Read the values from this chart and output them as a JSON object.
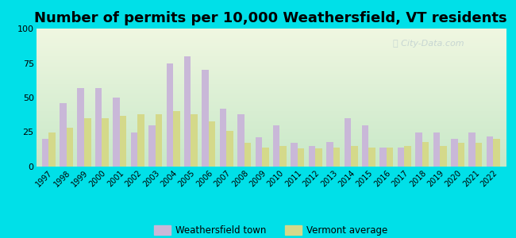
{
  "title": "Number of permits per 10,000 Weathersfield, VT residents",
  "years": [
    1997,
    1998,
    1999,
    2000,
    2001,
    2002,
    2003,
    2004,
    2005,
    2006,
    2007,
    2008,
    2009,
    2010,
    2011,
    2012,
    2013,
    2014,
    2015,
    2016,
    2017,
    2018,
    2019,
    2020,
    2021,
    2022
  ],
  "weathersfield": [
    20,
    46,
    57,
    57,
    50,
    25,
    30,
    75,
    80,
    70,
    42,
    38,
    21,
    30,
    17,
    15,
    18,
    35,
    30,
    14,
    14,
    25,
    25,
    20,
    25,
    22
  ],
  "vermont_avg": [
    25,
    28,
    35,
    35,
    37,
    38,
    38,
    40,
    38,
    33,
    26,
    17,
    14,
    15,
    13,
    13,
    14,
    15,
    14,
    14,
    15,
    18,
    15,
    17,
    17,
    20
  ],
  "town_color": "#c9b8d8",
  "avg_color": "#d4d98a",
  "background_outer": "#00e0e8",
  "ylim": [
    0,
    100
  ],
  "yticks": [
    0,
    25,
    50,
    75,
    100
  ],
  "title_fontsize": 13,
  "legend_town": "Weathersfield town",
  "legend_avg": "Vermont average",
  "watermark_color": "#c0d0d0",
  "bar_width": 0.38
}
